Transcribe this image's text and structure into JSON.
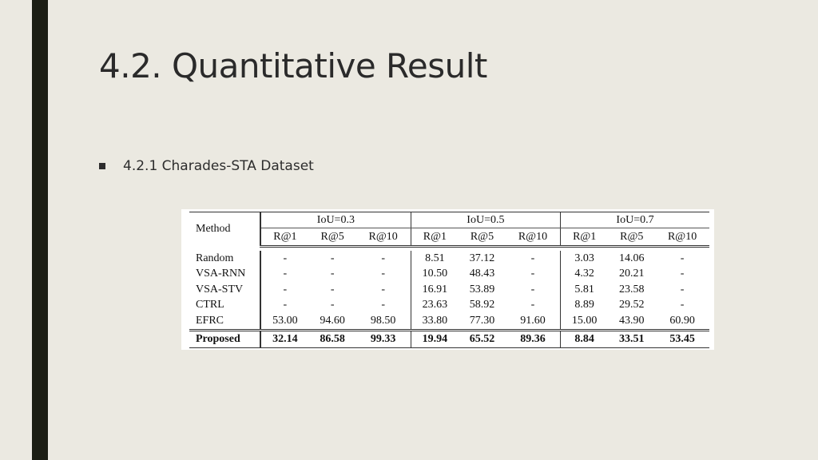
{
  "slide": {
    "title": "4.2. Quantitative Result",
    "bullet": "4.2.1 Charades-STA Dataset"
  },
  "table": {
    "method_header": "Method",
    "groups": [
      "IoU=0.3",
      "IoU=0.5",
      "IoU=0.7"
    ],
    "metrics": [
      "R@1",
      "R@5",
      "R@10"
    ],
    "rows": [
      {
        "method": "Random",
        "values": [
          "-",
          "-",
          "-",
          "8.51",
          "37.12",
          "-",
          "3.03",
          "14.06",
          "-"
        ]
      },
      {
        "method": "VSA-RNN",
        "values": [
          "-",
          "-",
          "-",
          "10.50",
          "48.43",
          "-",
          "4.32",
          "20.21",
          "-"
        ]
      },
      {
        "method": "VSA-STV",
        "values": [
          "-",
          "-",
          "-",
          "16.91",
          "53.89",
          "-",
          "5.81",
          "23.58",
          "-"
        ]
      },
      {
        "method": "CTRL",
        "values": [
          "-",
          "-",
          "-",
          "23.63",
          "58.92",
          "-",
          "8.89",
          "29.52",
          "-"
        ]
      },
      {
        "method": "EFRC",
        "values": [
          "53.00",
          "94.60",
          "98.50",
          "33.80",
          "77.30",
          "91.60",
          "15.00",
          "43.90",
          "60.90"
        ]
      },
      {
        "method": "Proposed",
        "values": [
          "32.14",
          "86.58",
          "99.33",
          "19.94",
          "65.52",
          "89.36",
          "8.84",
          "33.51",
          "53.45"
        ]
      }
    ]
  }
}
